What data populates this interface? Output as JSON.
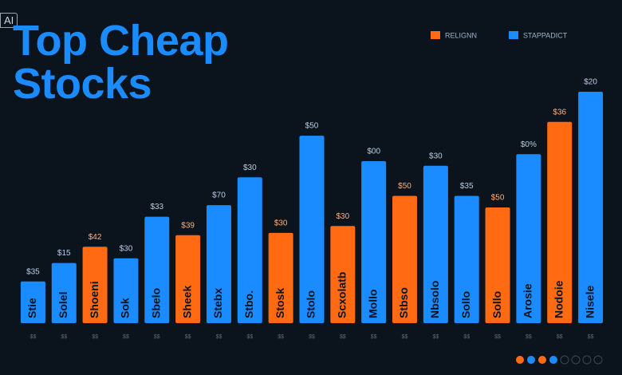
{
  "badge": "AI",
  "chart_data": {
    "type": "bar",
    "title": "Top Cheap Stocks",
    "categories": [
      "Stie",
      "Solel",
      "Shoeni",
      "Sok",
      "Sbelo",
      "Sheek",
      "Stebx",
      "Stbo.",
      "Stosk",
      "Stolo",
      "Scxolatb",
      "Mollo",
      "Stbso",
      "Nbsolo",
      "Sollo",
      "Sollo",
      "Arosie",
      "Nodoie",
      "Nisele"
    ],
    "top_labels": [
      "$35",
      "$15",
      "$42",
      "$30",
      "$33",
      "$39",
      "$70",
      "$30",
      "$30",
      "$50",
      "$30",
      "$00",
      "$50",
      "$30",
      "$35",
      "$50",
      "$0%",
      "$36",
      "$20"
    ],
    "bottom_labels": [
      "$$",
      "$$",
      "$$",
      "$$",
      "$$",
      "$$",
      "$$",
      "$$",
      "$$",
      "$$",
      "$$",
      "$$",
      "$$",
      "$$",
      "$$",
      "$$",
      "$$",
      "$$",
      "$$"
    ],
    "series": [
      {
        "name": "RELIGNN",
        "color": "#ff6a13",
        "values": [
          null,
          null,
          33,
          null,
          null,
          38,
          null,
          null,
          39,
          null,
          42,
          null,
          55,
          null,
          null,
          50,
          null,
          87,
          null
        ]
      },
      {
        "name": "STAPPADICT",
        "color": "#1a8cff",
        "values": [
          18,
          26,
          null,
          28,
          46,
          null,
          51,
          63,
          null,
          81,
          null,
          70,
          null,
          68,
          55,
          null,
          73,
          null,
          100
        ]
      }
    ],
    "ylim": [
      0,
      100
    ],
    "legend": "top-right"
  }
}
